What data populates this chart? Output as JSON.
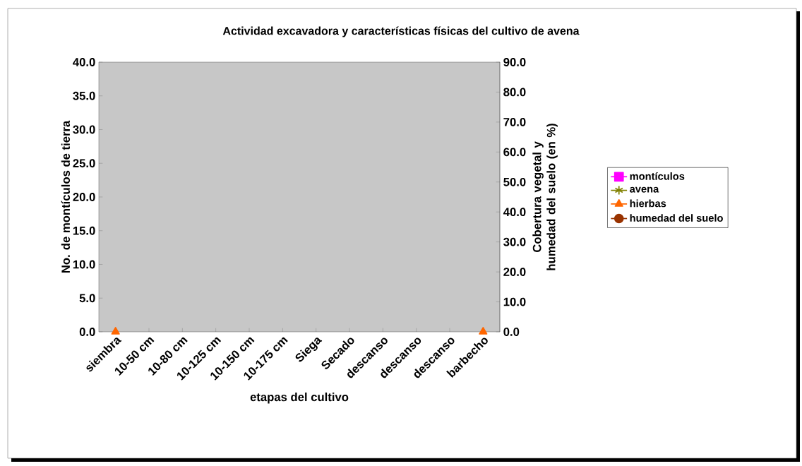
{
  "chart_data": {
    "type": "line",
    "title": "Actividad excavadora y características físicas del cultivo de avena",
    "xlabel": "etapas del cultivo",
    "ylabel": "No. de montículos de tierra",
    "y2label": "Cobertura vegetal y humedad del suelo (en %)",
    "categories": [
      "siembra",
      "10-50 cm",
      "10-80 cm",
      "10-125 cm",
      "10-150 cm",
      "10-175 cm",
      "Siega",
      "Secado",
      "descanso",
      "descanso",
      "descanso",
      "barbecho"
    ],
    "series": [
      {
        "name": "montículos",
        "color": "#ff00ff",
        "marker": "square",
        "values": [
          null,
          null,
          null,
          null,
          null,
          null,
          null,
          null,
          null,
          null,
          null,
          null
        ]
      },
      {
        "name": "avena",
        "color": "#808000",
        "marker": "cross",
        "axis": "y2",
        "values": [
          null,
          null,
          null,
          null,
          null,
          null,
          null,
          null,
          null,
          null,
          null,
          null
        ]
      },
      {
        "name": "hierbas",
        "color": "#ff6600",
        "marker": "triangle",
        "axis": "y2",
        "type": "scatter",
        "values": [
          0,
          null,
          null,
          null,
          null,
          null,
          null,
          null,
          null,
          null,
          null,
          0
        ]
      },
      {
        "name": "humedad del suelo",
        "color": "#993300",
        "marker": "circle",
        "axis": "y2",
        "values": [
          null,
          null,
          null,
          null,
          null,
          null,
          null,
          null,
          null,
          null,
          null,
          null
        ]
      }
    ],
    "ylim": [
      0,
      40
    ],
    "yticks": [
      {
        "value": 0,
        "label": "0.0"
      },
      {
        "value": 5,
        "label": "5.0"
      },
      {
        "value": 10,
        "label": "10.0"
      },
      {
        "value": 15,
        "label": "15.0"
      },
      {
        "value": 20,
        "label": "20.0"
      },
      {
        "value": 25,
        "label": "25.0"
      },
      {
        "value": 30,
        "label": "30.0"
      },
      {
        "value": 35,
        "label": "35.0"
      },
      {
        "value": 40,
        "label": "40.0"
      }
    ],
    "y2lim": [
      0,
      90
    ],
    "y2ticks": [
      {
        "value": 0,
        "label": "0.0"
      },
      {
        "value": 10,
        "label": "10.0"
      },
      {
        "value": 20,
        "label": "20.0"
      },
      {
        "value": 30,
        "label": "30.0"
      },
      {
        "value": 40,
        "label": "40.0"
      },
      {
        "value": 50,
        "label": "50.0"
      },
      {
        "value": 60,
        "label": "60.0"
      },
      {
        "value": 70,
        "label": "70.0"
      },
      {
        "value": 80,
        "label": "80.0"
      },
      {
        "value": 90,
        "label": "90.0"
      }
    ],
    "legend": "right",
    "line_style": "solid"
  }
}
